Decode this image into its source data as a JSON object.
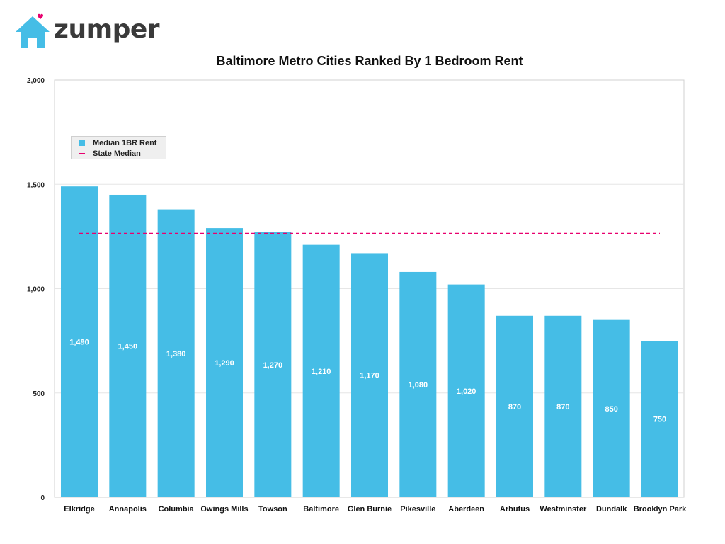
{
  "logo": {
    "text": "zumper",
    "house_color": "#45bde6",
    "heart_color": "#e8006f"
  },
  "chart_data": {
    "type": "bar",
    "title": "Baltimore Metro Cities Ranked By 1 Bedroom Rent",
    "xlabel": "",
    "ylabel": "",
    "ylim": [
      0,
      2000
    ],
    "yticks": [
      0,
      500,
      1000,
      1500,
      2000
    ],
    "ytick_labels": [
      "0",
      "500",
      "1,000",
      "1,500",
      "2,000"
    ],
    "categories": [
      "Elkridge",
      "Annapolis",
      "Columbia",
      "Owings Mills",
      "Towson",
      "Baltimore",
      "Glen Burnie",
      "Pikesville",
      "Aberdeen",
      "Arbutus",
      "Westminster",
      "Dundalk",
      "Brooklyn Park"
    ],
    "series": [
      {
        "name": "Median 1BR Rent",
        "values": [
          1490,
          1450,
          1380,
          1290,
          1270,
          1210,
          1170,
          1080,
          1020,
          870,
          870,
          850,
          750
        ],
        "labels": [
          "1,490",
          "1,450",
          "1,380",
          "1,290",
          "1,270",
          "1,210",
          "1,170",
          "1,080",
          "1,020",
          "870",
          "870",
          "850",
          "750"
        ],
        "color": "#45bde6"
      }
    ],
    "reference_line": {
      "name": "State Median",
      "value": 1265,
      "color": "#e8006f",
      "style": "dashed"
    },
    "grid": true,
    "legend_position": "top-left"
  }
}
